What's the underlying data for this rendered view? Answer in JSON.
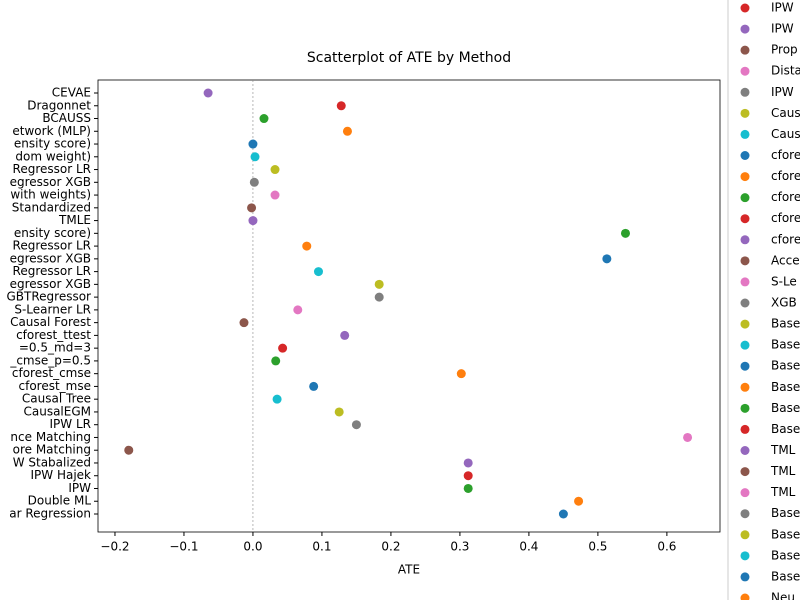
{
  "chart_data": {
    "type": "scatter",
    "title": "Scatterplot of ATE by Method",
    "x_label": "ATE",
    "categories": [
      "CEVAE",
      "Dragonnet",
      "BCAUSS",
      "etwork (MLP)",
      "ensity score)",
      "dom weight)",
      "Regressor LR",
      "egressor XGB",
      "with weights)",
      "Standardized",
      "TMLE",
      "ensity score)",
      "Regressor LR",
      "egressor XGB",
      "Regressor LR",
      "egressor XGB",
      "GBTRegressor",
      "S-Learner LR",
      "Causal Forest",
      "cforest_ttest",
      "=0.5_md=3",
      "_cmse_p=0.5",
      "cforest_cmse",
      "cforest_mse",
      "Causal Tree",
      "CausalEGM",
      "IPW LR",
      "nce Matching",
      "ore Matching",
      "W Stabalized",
      "IPW Hajek",
      "IPW",
      "Double ML",
      "ar Regression"
    ],
    "values": [
      -0.065,
      0.128,
      0.016,
      0.137,
      0.0,
      0.003,
      0.032,
      0.002,
      0.032,
      -0.002,
      0.0,
      0.54,
      0.078,
      0.513,
      0.095,
      0.183,
      0.183,
      0.065,
      -0.013,
      0.133,
      0.043,
      0.033,
      0.302,
      0.088,
      0.035,
      0.125,
      0.15,
      0.63,
      -0.18,
      0.312,
      0.312,
      0.312,
      0.472,
      0.45
    ],
    "colors": [
      "#9467bd",
      "#d62728",
      "#2ca02c",
      "#ff7f0e",
      "#1f77b4",
      "#17becf",
      "#bcbd22",
      "#7f7f7f",
      "#e377c2",
      "#8c564b",
      "#9467bd",
      "#2ca02c",
      "#ff7f0e",
      "#1f77b4",
      "#17becf",
      "#bcbd22",
      "#7f7f7f",
      "#e377c2",
      "#8c564b",
      "#9467bd",
      "#d62728",
      "#2ca02c",
      "#ff7f0e",
      "#1f77b4",
      "#17becf",
      "#bcbd22",
      "#7f7f7f",
      "#e377c2",
      "#8c564b",
      "#9467bd",
      "#d62728",
      "#2ca02c",
      "#ff7f0e",
      "#1f77b4"
    ],
    "xlim": [
      -0.2246,
      0.677
    ],
    "xticks": [
      {
        "value": -0.2,
        "label": "−0.2"
      },
      {
        "value": -0.1,
        "label": "−0.1"
      },
      {
        "value": 0.0,
        "label": "0.0"
      },
      0.1,
      0.2,
      0.3,
      0.4,
      0.5,
      0.6
    ],
    "reference_line_x": 0,
    "legend": [
      {
        "label": "IPW",
        "color": "#d62728"
      },
      {
        "label": "IPW",
        "color": "#9467bd"
      },
      {
        "label": "Prop",
        "color": "#8c564b"
      },
      {
        "label": "Dista",
        "color": "#e377c2"
      },
      {
        "label": "IPW",
        "color": "#7f7f7f"
      },
      {
        "label": "Causs",
        "color": "#bcbd22"
      },
      {
        "label": "Caus",
        "color": "#17becf"
      },
      {
        "label": "cfore",
        "color": "#1f77b4"
      },
      {
        "label": "cfore",
        "color": "#ff7f0e"
      },
      {
        "label": "cfore",
        "color": "#2ca02c"
      },
      {
        "label": "cfore",
        "color": "#d62728"
      },
      {
        "label": "cfore",
        "color": "#9467bd"
      },
      {
        "label": "Acce",
        "color": "#8c564b"
      },
      {
        "label": "S-Le",
        "color": "#e377c2"
      },
      {
        "label": "XGB",
        "color": "#7f7f7f"
      },
      {
        "label": "Base",
        "color": "#bcbd22"
      },
      {
        "label": "Base",
        "color": "#17becf"
      },
      {
        "label": "Base",
        "color": "#1f77b4"
      },
      {
        "label": "Base",
        "color": "#ff7f0e"
      },
      {
        "label": "Base",
        "color": "#2ca02c"
      },
      {
        "label": "Base",
        "color": "#d62728"
      },
      {
        "label": "TML",
        "color": "#9467bd"
      },
      {
        "label": "TML",
        "color": "#8c564b"
      },
      {
        "label": "TML",
        "color": "#e377c2"
      },
      {
        "label": "Base",
        "color": "#7f7f7f"
      },
      {
        "label": "Base",
        "color": "#bcbd22"
      },
      {
        "label": "Base",
        "color": "#17becf"
      },
      {
        "label": "Base",
        "color": "#1f77b4"
      },
      {
        "label": "Neu",
        "color": "#ff7f0e"
      }
    ]
  }
}
